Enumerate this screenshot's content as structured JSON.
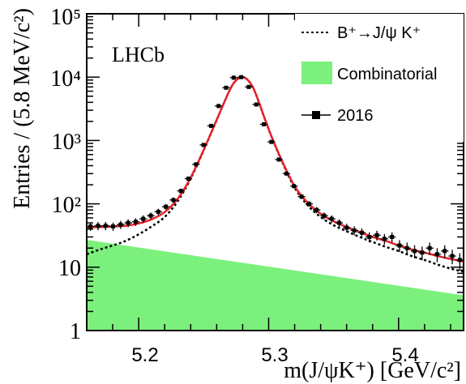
{
  "chart_data": {
    "type": "line",
    "experiment_label": "LHCb",
    "xlabel": "m(J/ψK⁺) [GeV/c²]",
    "ylabel": "Entries / (5.8 MeV/c²)",
    "xlim": [
      5.16,
      5.45
    ],
    "ylim": [
      1,
      100000
    ],
    "yscale": "log",
    "x_ticks": [
      5.2,
      5.3,
      5.4
    ],
    "x_tick_labels": [
      "5.2",
      "5.3",
      "5.4"
    ],
    "y_ticks": [
      1,
      10,
      100,
      1000,
      10000,
      100000
    ],
    "y_tick_labels": [
      "1",
      "10",
      "10²",
      "10³",
      "10⁴",
      "10⁵"
    ],
    "legend": {
      "position": "top-right",
      "entries": [
        {
          "label": "B⁺→J/ψ K⁺",
          "style": "dotted-line"
        },
        {
          "label": "Combinatorial",
          "style": "filled-area"
        },
        {
          "label": "2016",
          "style": "marker-with-errors"
        }
      ]
    },
    "colors": {
      "total_fit": "#e8202a",
      "signal": "#000000",
      "combinatorial": "#7cf07c",
      "data": "#000000"
    },
    "bin_width_gev": 0.0058,
    "series": [
      {
        "name": "2016",
        "kind": "data",
        "x": [
          5.1629,
          5.1687,
          5.1745,
          5.1803,
          5.1861,
          5.1919,
          5.1977,
          5.2035,
          5.2093,
          5.2151,
          5.2209,
          5.2267,
          5.2325,
          5.2383,
          5.2441,
          5.2499,
          5.2557,
          5.2615,
          5.2673,
          5.2731,
          5.2789,
          5.2847,
          5.2905,
          5.2963,
          5.3021,
          5.3079,
          5.3137,
          5.3195,
          5.3253,
          5.3311,
          5.3369,
          5.3427,
          5.3485,
          5.3543,
          5.3601,
          5.3659,
          5.3717,
          5.3775,
          5.3833,
          5.3891,
          5.3949,
          5.4007,
          5.4065,
          5.4123,
          5.4181,
          5.4239,
          5.4297,
          5.4355,
          5.4413,
          5.4471
        ],
        "y": [
          44,
          45,
          45,
          44,
          47,
          50,
          52,
          58,
          65,
          75,
          90,
          115,
          160,
          250,
          420,
          850,
          1700,
          3500,
          6800,
          9800,
          10000,
          7000,
          3700,
          1800,
          950,
          500,
          300,
          190,
          130,
          100,
          80,
          65,
          58,
          50,
          42,
          38,
          35,
          30,
          32,
          28,
          30,
          22,
          20,
          18,
          17,
          20,
          16,
          18,
          15,
          13
        ]
      },
      {
        "name": "B⁺→J/ψ K⁺",
        "kind": "signal-fit",
        "x": [
          5.16,
          5.17,
          5.18,
          5.19,
          5.2,
          5.21,
          5.22,
          5.23,
          5.24,
          5.25,
          5.26,
          5.27,
          5.275,
          5.28,
          5.285,
          5.29,
          5.3,
          5.31,
          5.32,
          5.33,
          5.34,
          5.35,
          5.36,
          5.37,
          5.38,
          5.39,
          5.4,
          5.41,
          5.42,
          5.43,
          5.44,
          5.45
        ],
        "y": [
          16,
          19,
          22,
          26,
          33,
          44,
          62,
          110,
          250,
          700,
          2100,
          6200,
          8900,
          10000,
          8500,
          5500,
          1500,
          480,
          180,
          95,
          62,
          46,
          37,
          30,
          25,
          21,
          18,
          15,
          13,
          11,
          9.5,
          8.5
        ]
      },
      {
        "name": "Total fit",
        "kind": "total-fit",
        "x": [
          5.16,
          5.17,
          5.18,
          5.19,
          5.2,
          5.21,
          5.22,
          5.23,
          5.24,
          5.25,
          5.26,
          5.27,
          5.275,
          5.28,
          5.285,
          5.29,
          5.3,
          5.31,
          5.32,
          5.33,
          5.34,
          5.35,
          5.36,
          5.37,
          5.38,
          5.39,
          5.4,
          5.41,
          5.42,
          5.43,
          5.44,
          5.45
        ],
        "y": [
          43,
          43,
          44,
          45,
          49,
          57,
          74,
          120,
          260,
          710,
          2110,
          6210,
          8910,
          10010,
          8510,
          5510,
          1510,
          490,
          190,
          104,
          70,
          53,
          43,
          36,
          30,
          26,
          22,
          19,
          17,
          15,
          13.5,
          12.3
        ]
      },
      {
        "name": "Combinatorial",
        "kind": "background-area",
        "x": [
          5.16,
          5.45
        ],
        "y": [
          27,
          3.6
        ]
      }
    ]
  }
}
